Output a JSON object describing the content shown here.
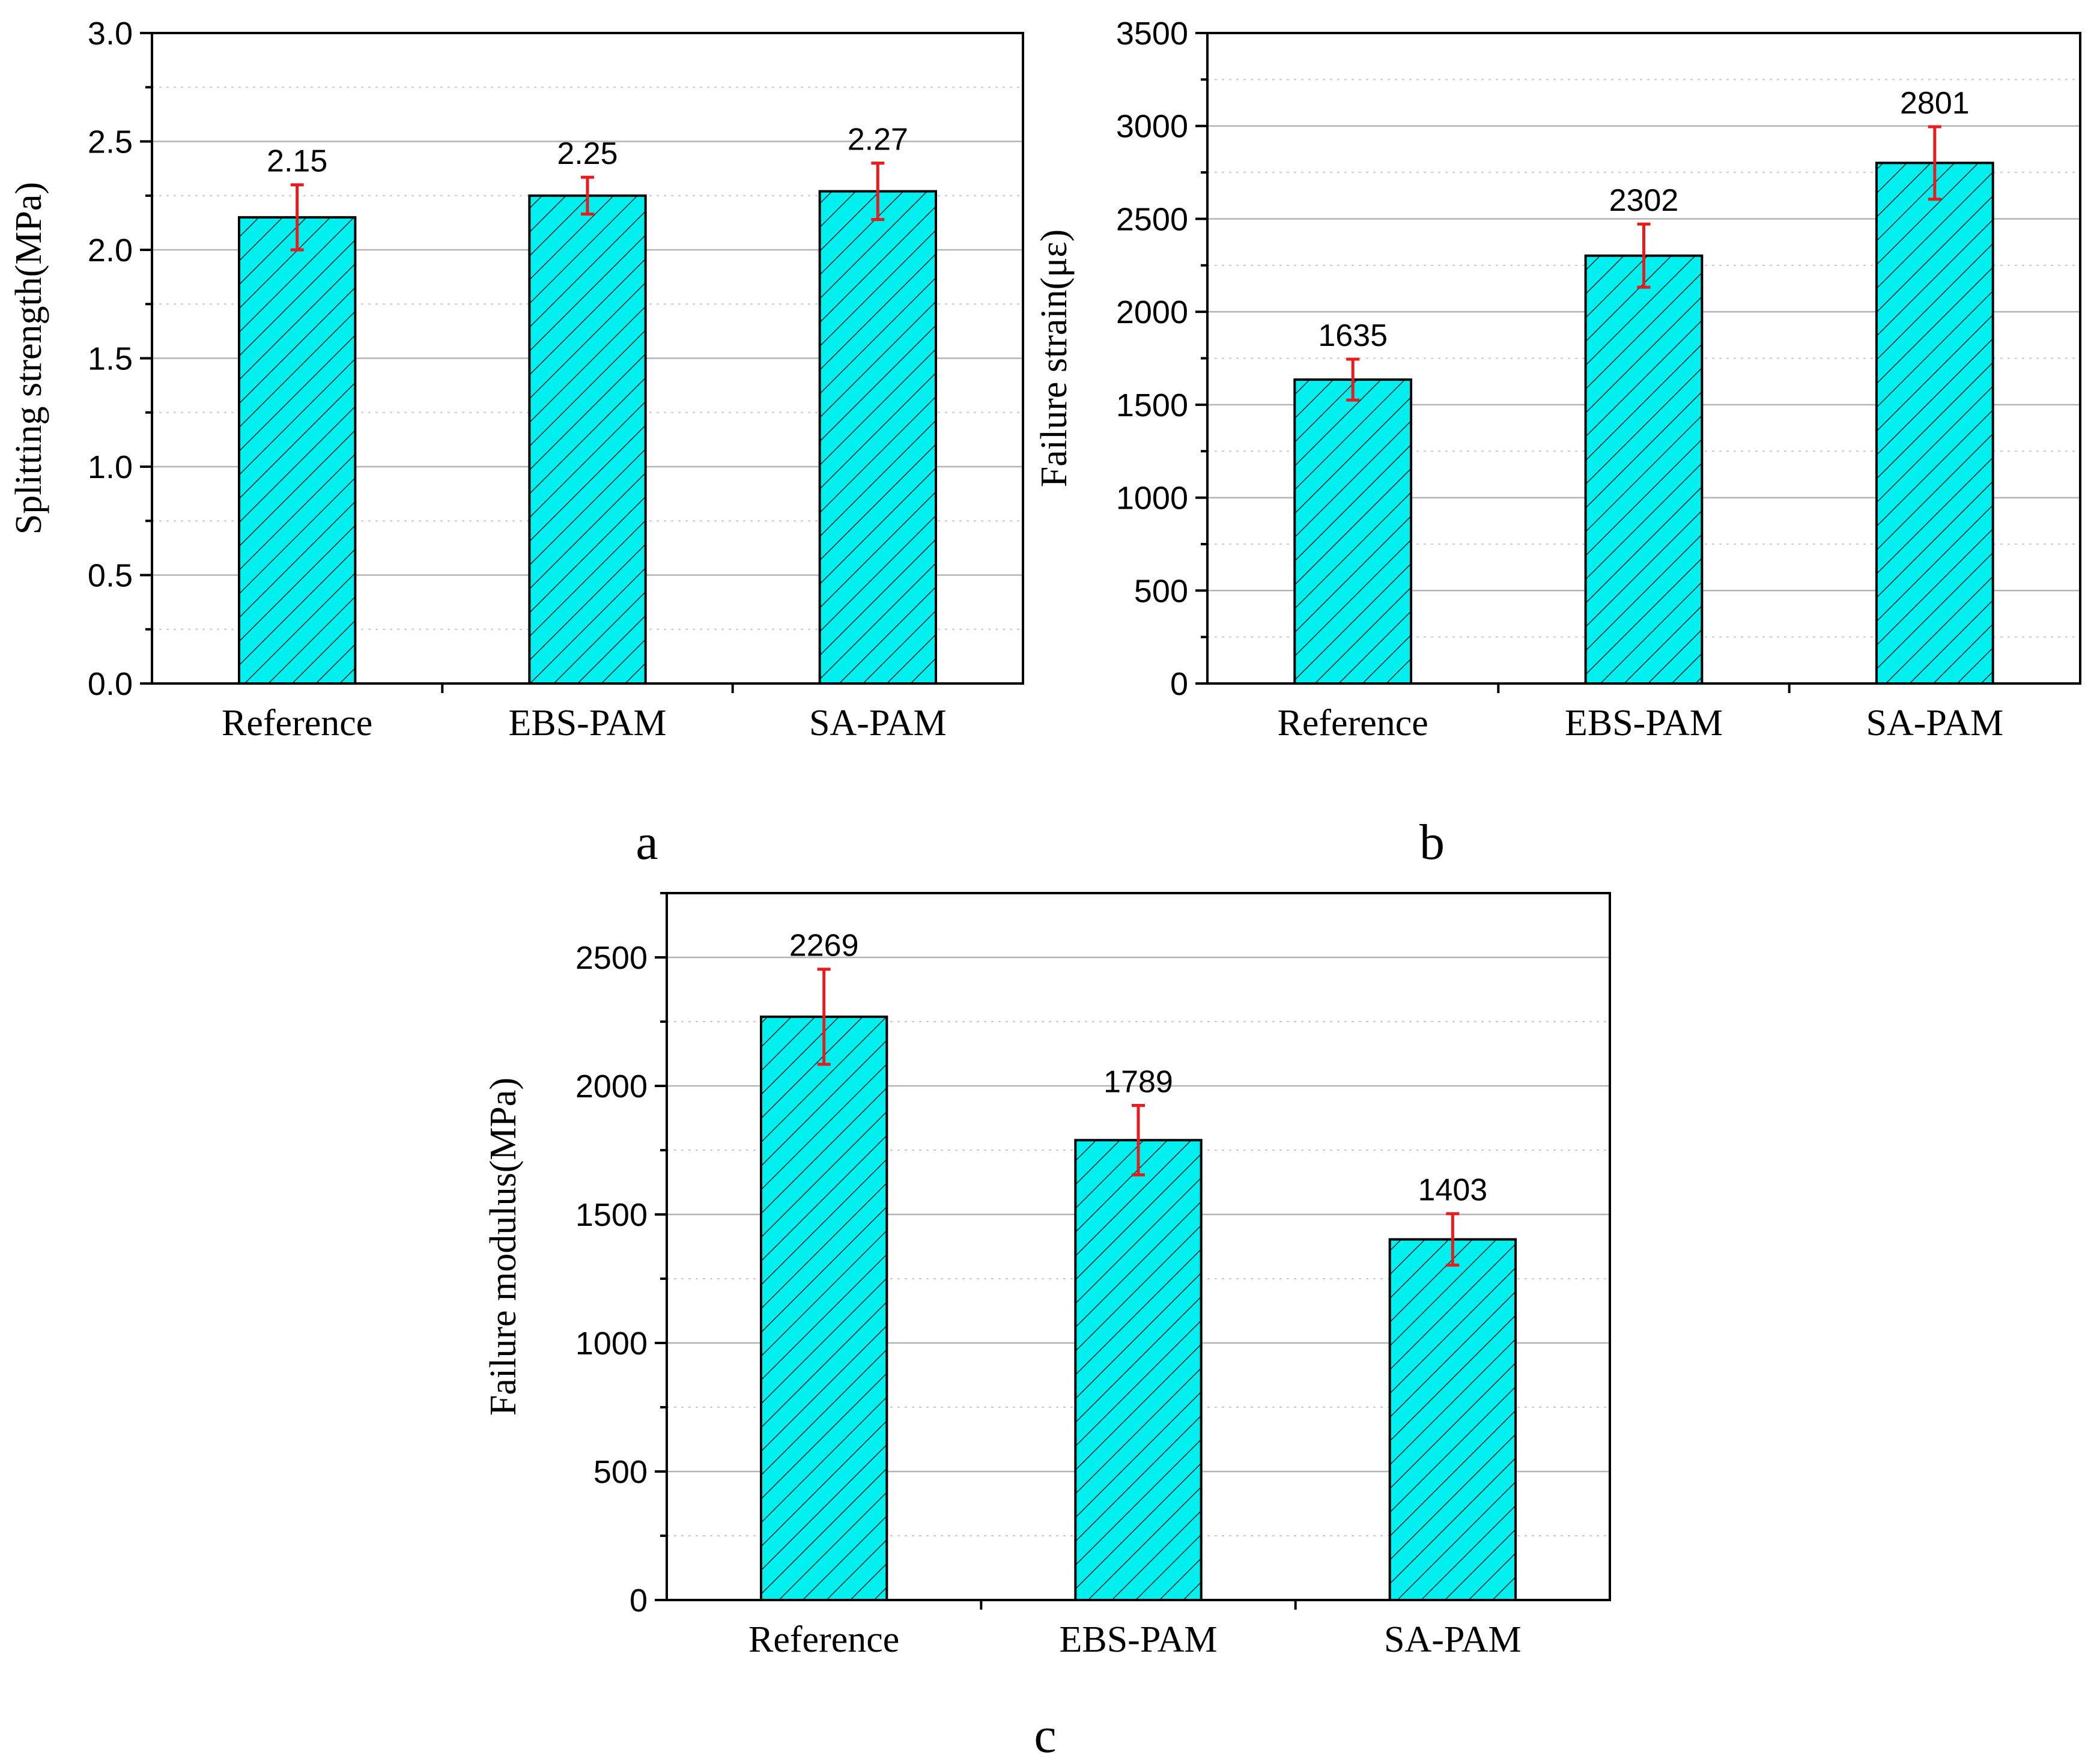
{
  "colors": {
    "bar_fill": "#00f0f0",
    "hatch": "#000000",
    "error_bar": "#e81c1c",
    "grid": "#b4b4b4"
  },
  "chart_data": [
    {
      "type": "bar",
      "panel_label": "a",
      "ylabel": "Splitting strength(MPa)",
      "xlabel": "",
      "categories": [
        "Reference",
        "EBS-PAM",
        "SA-PAM"
      ],
      "values": [
        2.15,
        2.25,
        2.27
      ],
      "value_labels": [
        "2.15",
        "2.25",
        "2.27"
      ],
      "error": [
        0.15,
        0.085,
        0.13
      ],
      "ylim": [
        0,
        3.0
      ],
      "yticks": [
        0.0,
        0.5,
        1.0,
        1.5,
        2.0,
        2.5,
        3.0
      ],
      "ytick_labels": [
        "0.0",
        "0.5",
        "1.0",
        "1.5",
        "2.0",
        "2.5",
        "3.0"
      ],
      "minor_step": 0.25,
      "grid": true
    },
    {
      "type": "bar",
      "panel_label": "b",
      "ylabel": "Failure strain(με)",
      "xlabel": "",
      "categories": [
        "Reference",
        "EBS-PAM",
        "SA-PAM"
      ],
      "values": [
        1635,
        2302,
        2801
      ],
      "value_labels": [
        "1635",
        "2302",
        "2801"
      ],
      "error": [
        110,
        170,
        195
      ],
      "ylim": [
        0,
        3500
      ],
      "yticks": [
        0,
        500,
        1000,
        1500,
        2000,
        2500,
        3000,
        3500
      ],
      "ytick_labels": [
        "0",
        "500",
        "1000",
        "1500",
        "2000",
        "2500",
        "3000",
        "3500"
      ],
      "minor_step": 250,
      "grid": true
    },
    {
      "type": "bar",
      "panel_label": "c",
      "ylabel": "Failure modulus(MPa)",
      "xlabel": "",
      "categories": [
        "Reference",
        "EBS-PAM",
        "SA-PAM"
      ],
      "values": [
        2269,
        1789,
        1403
      ],
      "value_labels": [
        "2269",
        "1789",
        "1403"
      ],
      "error": [
        185,
        135,
        100
      ],
      "ylim": [
        0,
        2750
      ],
      "yticks": [
        0,
        500,
        1000,
        1500,
        2000,
        2500
      ],
      "ytick_labels": [
        "0",
        "500",
        "1000",
        "1500",
        "2000",
        "2500"
      ],
      "minor_step": 250,
      "grid": true
    }
  ]
}
